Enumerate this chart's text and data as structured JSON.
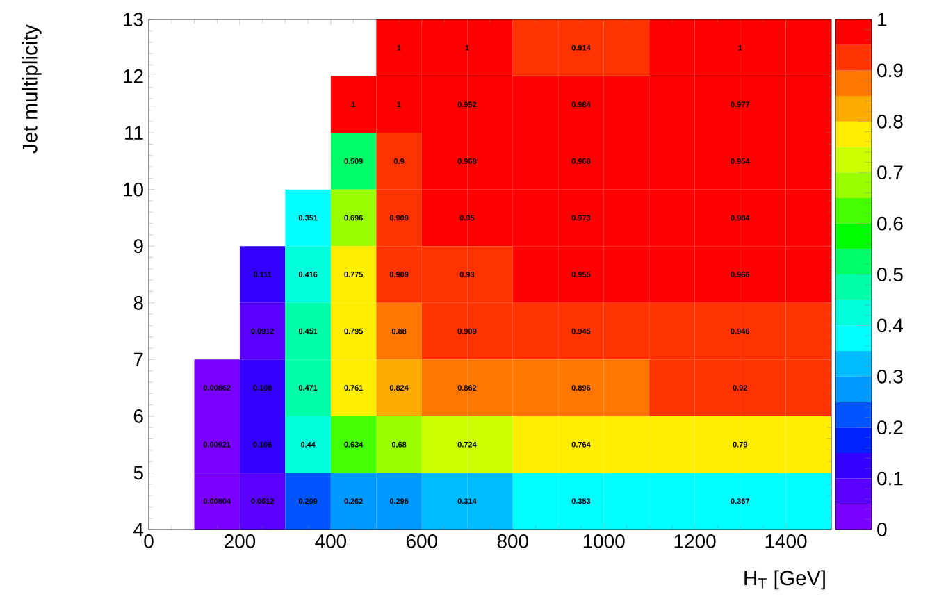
{
  "chart_data": {
    "type": "heatmap",
    "xlabel": "H$_{T}$ [GeV]",
    "ylabel": "Jet multiplicity",
    "xlim": [
      0,
      1500
    ],
    "xticks": [
      0,
      200,
      400,
      600,
      800,
      1000,
      1200,
      1400
    ],
    "ylim": [
      4,
      13
    ],
    "yticks": [
      4,
      5,
      6,
      7,
      8,
      9,
      10,
      11,
      12,
      13
    ],
    "cells": [
      [
        null,
        null,
        null,
        null,
        null,
        1,
        1,
        1,
        0.914,
        0.914,
        0.914,
        1,
        1,
        1,
        1
      ],
      [
        null,
        null,
        null,
        null,
        1,
        1,
        0.952,
        0.952,
        0.984,
        0.984,
        0.984,
        0.977,
        0.977,
        0.977,
        0.977
      ],
      [
        null,
        null,
        null,
        null,
        0.509,
        0.9,
        0.968,
        0.968,
        0.968,
        0.968,
        0.968,
        0.954,
        0.954,
        0.954,
        0.954
      ],
      [
        null,
        null,
        null,
        0.351,
        0.696,
        0.909,
        0.95,
        0.95,
        0.973,
        0.973,
        0.973,
        0.984,
        0.984,
        0.984,
        0.984
      ],
      [
        null,
        null,
        0.111,
        0.416,
        0.775,
        0.909,
        0.93,
        0.93,
        0.955,
        0.955,
        0.955,
        0.966,
        0.966,
        0.966,
        0.966
      ],
      [
        null,
        null,
        0.0912,
        0.451,
        0.795,
        0.88,
        0.909,
        0.909,
        0.945,
        0.945,
        0.945,
        0.946,
        0.946,
        0.946,
        0.946
      ],
      [
        null,
        0.00862,
        0.108,
        0.471,
        0.761,
        0.824,
        0.862,
        0.862,
        0.896,
        0.896,
        0.896,
        0.92,
        0.92,
        0.92,
        0.92
      ],
      [
        null,
        0.00921,
        0.106,
        0.44,
        0.634,
        0.68,
        0.724,
        0.724,
        0.764,
        0.764,
        0.764,
        0.79,
        0.79,
        0.79,
        0.79
      ],
      [
        null,
        0.00804,
        0.0612,
        0.209,
        0.262,
        0.295,
        0.314,
        0.314,
        0.353,
        0.353,
        0.353,
        0.367,
        0.367,
        0.367,
        0.367
      ]
    ],
    "cell_labels": [
      [
        null,
        null,
        null,
        null,
        null,
        "1",
        "1",
        null,
        null,
        "0.914",
        null,
        null,
        "1",
        null,
        null
      ],
      [
        null,
        null,
        null,
        null,
        "1",
        "1",
        "0.952",
        null,
        null,
        "0.984",
        null,
        null,
        "0.977",
        null,
        null
      ],
      [
        null,
        null,
        null,
        null,
        "0.509",
        "0.9",
        "0.968",
        null,
        null,
        "0.968",
        null,
        null,
        "0.954",
        null,
        null
      ],
      [
        null,
        null,
        null,
        "0.351",
        "0.696",
        "0.909",
        "0.95",
        null,
        null,
        "0.973",
        null,
        null,
        "0.984",
        null,
        null
      ],
      [
        null,
        null,
        "0.111",
        "0.416",
        "0.775",
        "0.909",
        "0.93",
        null,
        null,
        "0.955",
        null,
        null,
        "0.966",
        null,
        null
      ],
      [
        null,
        null,
        "0.0912",
        "0.451",
        "0.795",
        "0.88",
        "0.909",
        null,
        null,
        "0.945",
        null,
        null,
        "0.946",
        null,
        null
      ],
      [
        null,
        "0.00862",
        "0.108",
        "0.471",
        "0.761",
        "0.824",
        "0.862",
        null,
        null,
        "0.896",
        null,
        null,
        "0.92",
        null,
        null
      ],
      [
        null,
        "0.00921",
        "0.106",
        "0.44",
        "0.634",
        "0.68",
        "0.724",
        null,
        null,
        "0.764",
        null,
        null,
        "0.79",
        null,
        null
      ],
      [
        null,
        "0.00804",
        "0.0612",
        "0.209",
        "0.262",
        "0.295",
        "0.314",
        null,
        null,
        "0.353",
        null,
        null,
        "0.367",
        null,
        null
      ]
    ],
    "clim": [
      0,
      1
    ],
    "cticks": [
      0,
      0.1,
      0.2,
      0.3,
      0.4,
      0.5,
      0.6,
      0.7,
      0.8,
      0.9,
      1
    ],
    "colors": [
      "#7a00ff",
      "#5a00ff",
      "#3300ff",
      "#0022ff",
      "#0055ff",
      "#0099ff",
      "#00bbff",
      "#00ffff",
      "#00ffdd",
      "#00ffaa",
      "#00ff66",
      "#00ff00",
      "#44ff00",
      "#99ff00",
      "#ccff00",
      "#ffee00",
      "#ffaa00",
      "#ff7700",
      "#ff3300",
      "#ff0000"
    ]
  }
}
